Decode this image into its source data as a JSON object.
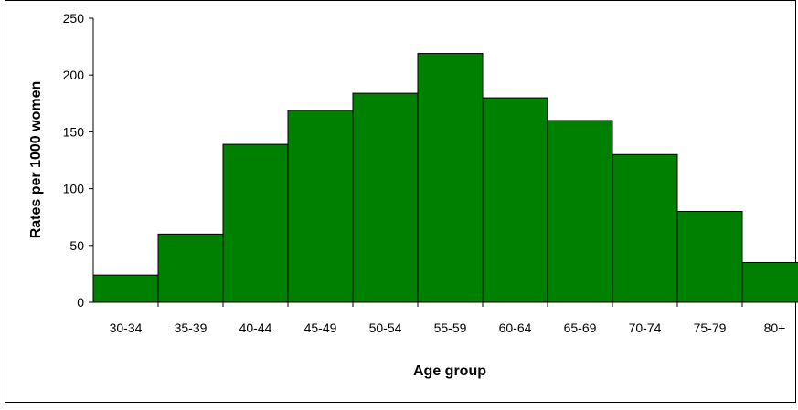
{
  "chart_data": {
    "type": "bar",
    "title": "",
    "xlabel": "Age group",
    "ylabel": "Rates per 1000 women",
    "categories": [
      "30-34",
      "35-39",
      "40-44",
      "45-49",
      "50-54",
      "55-59",
      "60-64",
      "65-69",
      "70-74",
      "75-79",
      "80+"
    ],
    "values": [
      24,
      60,
      139,
      169,
      184,
      219,
      180,
      160,
      130,
      80,
      35
    ],
    "ylim": [
      0,
      250
    ],
    "yticks": [
      0,
      50,
      100,
      150,
      200,
      250
    ],
    "grid": false,
    "legend": "none",
    "colors": {
      "bar_fill": "#008000",
      "bar_stroke": "#000000",
      "axis": "#000000",
      "background": "#ffffff"
    }
  }
}
